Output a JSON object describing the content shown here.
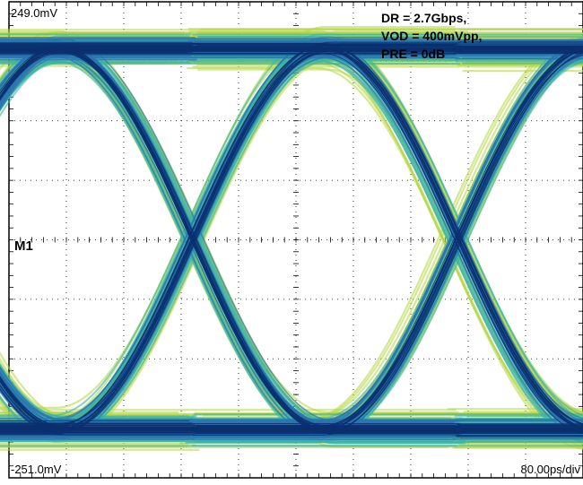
{
  "chart_data": {
    "type": "eye-diagram",
    "annotations": [
      "DR = 2.7Gbps,",
      "VOD = 400mVpp,",
      "PRE = 0dB"
    ],
    "y_top_label": "249.0mV",
    "y_bottom_label": "-251.0mV",
    "x_scale_label": "80.00ps/div",
    "marker_label": "M1",
    "ylim_mV": [
      -251.0,
      249.0
    ],
    "x_divisions": 10,
    "y_divisions": 8,
    "x_scale_ps_per_div": 80.0,
    "data_rate_gbps": 2.7,
    "vod_mVpp": 400,
    "pre_emphasis_dB": 0,
    "grid": true,
    "colors": {
      "trace_outer": "#b2d63e",
      "trace_mid": "#39b3a7",
      "trace_core": "#2a74b4",
      "trace_dense": "#0b2f6e",
      "grid": "#000000"
    }
  }
}
